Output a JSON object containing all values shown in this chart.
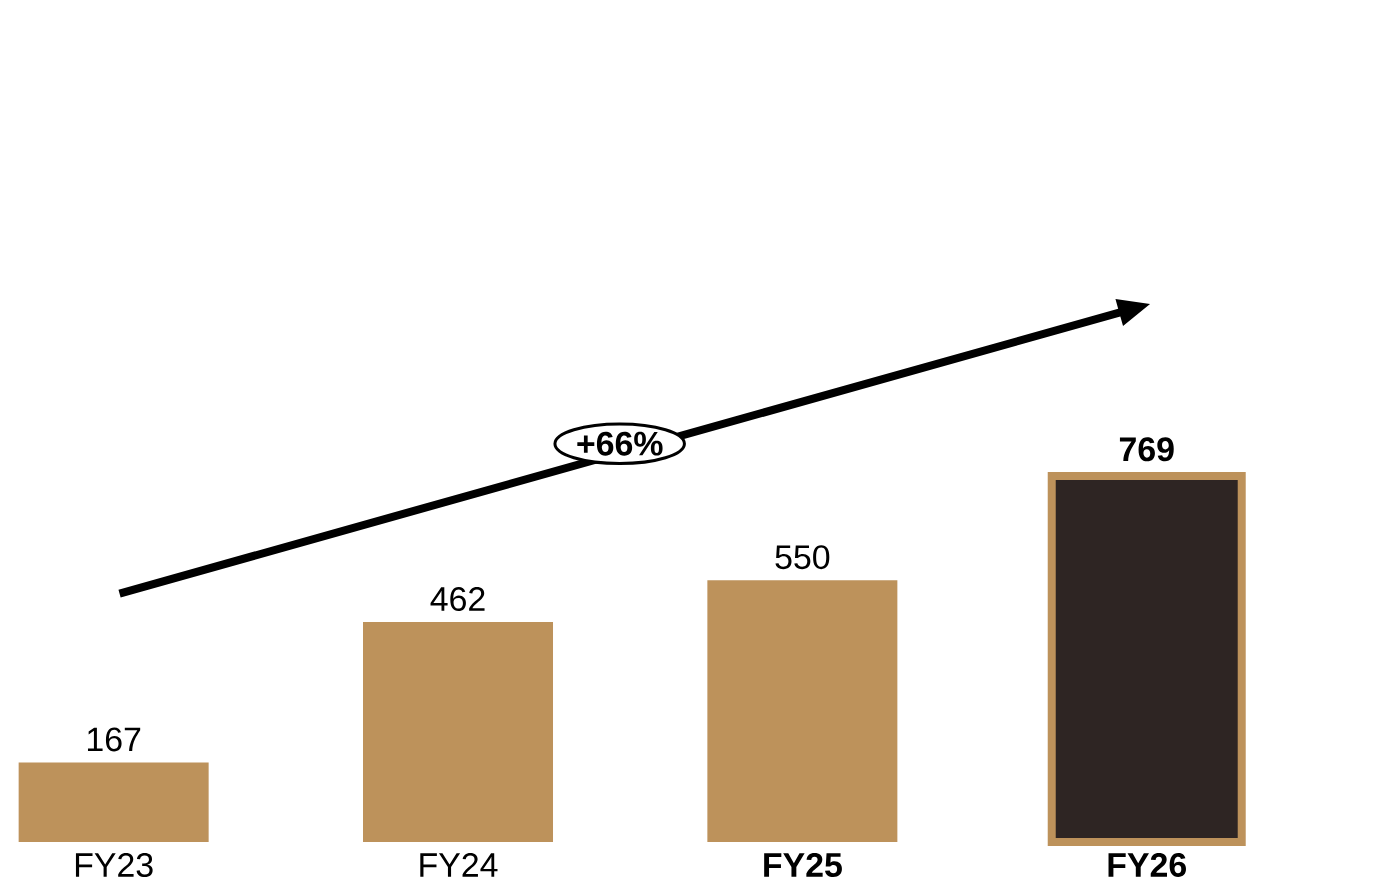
{
  "chart_data": {
    "type": "bar",
    "categories": [
      "FY23",
      "FY24",
      "FY25",
      "FY26"
    ],
    "values": [
      167,
      462,
      550,
      769
    ],
    "colors": [
      "#bd925b",
      "#bd925b",
      "#bd925b",
      "#2e2523"
    ],
    "data_labels": true,
    "annotations": [
      "+66%"
    ]
  }
}
